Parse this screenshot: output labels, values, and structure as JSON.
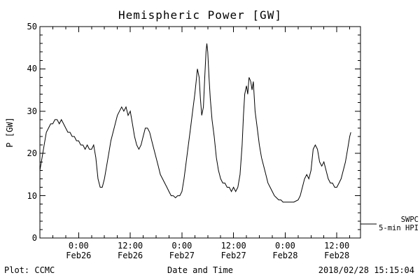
{
  "footer": {
    "plot_source": "Plot: CCMC",
    "timestamp": "2018/02/28 15:15:04"
  },
  "chart_data": {
    "type": "line",
    "title": "Hemispheric Power [GW]",
    "xlabel": "Date and Time",
    "ylabel": "P [GW]",
    "ylim": [
      0,
      50
    ],
    "yticks": [
      0,
      10,
      20,
      30,
      40,
      50
    ],
    "y_minor_step": 2,
    "x_minor_step_hours": 3,
    "x_hours_range": [
      -9,
      65.5
    ],
    "grid": false,
    "line_color": "#000000",
    "background_color": "#ffffff",
    "legend": {
      "position": "right-outside",
      "line1": "SWPC",
      "line2": "5-min HPI"
    },
    "xticks": [
      {
        "hour": 0,
        "time": "0:00",
        "date": "Feb26"
      },
      {
        "hour": 12,
        "time": "12:00",
        "date": "Feb26"
      },
      {
        "hour": 24,
        "time": "0:00",
        "date": "Feb27"
      },
      {
        "hour": 36,
        "time": "12:00",
        "date": "Feb27"
      },
      {
        "hour": 48,
        "time": "0:00",
        "date": "Feb28"
      },
      {
        "hour": 60,
        "time": "12:00",
        "date": "Feb28"
      }
    ],
    "series": [
      {
        "name": "SWPC 5-min HPI",
        "x_unit": "hours from 2018-02-26 00:00",
        "y_unit": "GW",
        "points": [
          [
            -9,
            16
          ],
          [
            -8.5,
            19
          ],
          [
            -8,
            22
          ],
          [
            -7.5,
            25
          ],
          [
            -7,
            26
          ],
          [
            -6.5,
            27
          ],
          [
            -6,
            27
          ],
          [
            -5.5,
            28
          ],
          [
            -5,
            28
          ],
          [
            -4.5,
            27
          ],
          [
            -4,
            28
          ],
          [
            -3.5,
            27
          ],
          [
            -3,
            26
          ],
          [
            -2.5,
            25
          ],
          [
            -2,
            25
          ],
          [
            -1.5,
            24
          ],
          [
            -1,
            24
          ],
          [
            -0.5,
            23
          ],
          [
            0,
            23
          ],
          [
            0.5,
            22
          ],
          [
            1,
            22
          ],
          [
            1.5,
            21
          ],
          [
            2,
            22
          ],
          [
            2.5,
            21
          ],
          [
            3,
            21
          ],
          [
            3.5,
            22
          ],
          [
            4,
            19
          ],
          [
            4.5,
            14
          ],
          [
            5,
            12
          ],
          [
            5.5,
            12
          ],
          [
            6,
            14
          ],
          [
            6.5,
            17
          ],
          [
            7,
            20
          ],
          [
            7.5,
            23
          ],
          [
            8,
            25
          ],
          [
            8.5,
            27
          ],
          [
            9,
            29
          ],
          [
            9.5,
            30
          ],
          [
            10,
            31
          ],
          [
            10.5,
            30
          ],
          [
            11,
            31
          ],
          [
            11.5,
            29
          ],
          [
            12,
            30
          ],
          [
            12.5,
            27
          ],
          [
            13,
            24
          ],
          [
            13.5,
            22
          ],
          [
            14,
            21
          ],
          [
            14.5,
            22
          ],
          [
            15,
            24
          ],
          [
            15.5,
            26
          ],
          [
            16,
            26
          ],
          [
            16.5,
            25
          ],
          [
            17,
            23
          ],
          [
            17.5,
            21
          ],
          [
            18,
            19
          ],
          [
            18.5,
            17
          ],
          [
            19,
            15
          ],
          [
            19.5,
            14
          ],
          [
            20,
            13
          ],
          [
            20.5,
            12
          ],
          [
            21,
            11
          ],
          [
            21.5,
            10
          ],
          [
            22,
            10
          ],
          [
            22.5,
            9.5
          ],
          [
            23,
            10
          ],
          [
            23.5,
            10
          ],
          [
            24,
            11
          ],
          [
            24.5,
            14
          ],
          [
            25,
            18
          ],
          [
            25.5,
            22
          ],
          [
            26,
            26
          ],
          [
            26.5,
            30
          ],
          [
            27,
            34
          ],
          [
            27.3,
            37
          ],
          [
            27.6,
            40
          ],
          [
            28,
            38
          ],
          [
            28.3,
            33
          ],
          [
            28.6,
            29
          ],
          [
            29,
            31
          ],
          [
            29.3,
            38
          ],
          [
            29.6,
            44
          ],
          [
            29.8,
            46
          ],
          [
            30,
            44
          ],
          [
            30.3,
            38
          ],
          [
            30.6,
            33
          ],
          [
            31,
            28
          ],
          [
            31.5,
            24
          ],
          [
            32,
            19
          ],
          [
            32.5,
            16
          ],
          [
            33,
            14
          ],
          [
            33.5,
            13
          ],
          [
            34,
            13
          ],
          [
            34.5,
            12
          ],
          [
            35,
            12
          ],
          [
            35.5,
            11
          ],
          [
            36,
            12
          ],
          [
            36.5,
            11
          ],
          [
            37,
            12
          ],
          [
            37.5,
            15
          ],
          [
            38,
            22
          ],
          [
            38.3,
            29
          ],
          [
            38.6,
            34
          ],
          [
            39,
            36
          ],
          [
            39.3,
            34
          ],
          [
            39.6,
            38
          ],
          [
            40,
            37
          ],
          [
            40.3,
            35
          ],
          [
            40.6,
            37
          ],
          [
            41,
            30
          ],
          [
            41.5,
            26
          ],
          [
            42,
            22
          ],
          [
            42.5,
            19
          ],
          [
            43,
            17
          ],
          [
            43.5,
            15
          ],
          [
            44,
            13
          ],
          [
            44.5,
            12
          ],
          [
            45,
            11
          ],
          [
            45.5,
            10
          ],
          [
            46,
            9.5
          ],
          [
            46.5,
            9
          ],
          [
            47,
            9
          ],
          [
            47.5,
            8.5
          ],
          [
            48,
            8.5
          ],
          [
            49,
            8.5
          ],
          [
            50,
            8.5
          ],
          [
            51,
            9
          ],
          [
            51.5,
            10
          ],
          [
            52,
            12
          ],
          [
            52.5,
            14
          ],
          [
            53,
            15
          ],
          [
            53.5,
            14
          ],
          [
            54,
            16
          ],
          [
            54.5,
            21
          ],
          [
            55,
            22
          ],
          [
            55.5,
            21
          ],
          [
            56,
            18
          ],
          [
            56.5,
            17
          ],
          [
            57,
            18
          ],
          [
            57.5,
            16
          ],
          [
            58,
            14
          ],
          [
            58.5,
            13
          ],
          [
            59,
            13
          ],
          [
            59.5,
            12
          ],
          [
            60,
            12
          ],
          [
            60.5,
            13
          ],
          [
            61,
            14
          ],
          [
            61.5,
            16
          ],
          [
            62,
            18
          ],
          [
            62.5,
            21
          ],
          [
            63,
            24
          ],
          [
            63.25,
            25
          ]
        ]
      }
    ]
  }
}
